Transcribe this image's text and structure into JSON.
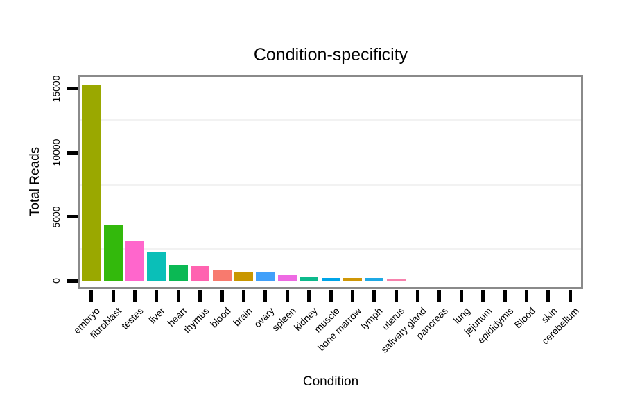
{
  "title": "Condition-specificity",
  "axes": {
    "x_title": "Condition",
    "y_title": "Total Reads",
    "y_tick_labels": [
      "0",
      "5000",
      "10000",
      "15000"
    ]
  },
  "chart_data": {
    "type": "bar",
    "title": "Condition-specificity",
    "xlabel": "Condition",
    "ylabel": "Total Reads",
    "categories": [
      "embryo",
      "fibroblast",
      "testes",
      "liver",
      "heart",
      "thymus",
      "blood",
      "brain",
      "ovary",
      "spleen",
      "kidney",
      "muscle",
      "bone marrow",
      "lymph",
      "uterus",
      "salivary gland",
      "pancreas",
      "lung",
      "jejunum",
      "epididymis",
      "Blood",
      "skin",
      "cerebellum"
    ],
    "values": [
      15300,
      4400,
      3060,
      2250,
      1260,
      1140,
      870,
      690,
      630,
      450,
      310,
      230,
      200,
      190,
      150,
      0,
      0,
      0,
      0,
      0,
      0,
      0,
      0
    ],
    "bar_colors": [
      "#9AA800",
      "#33B90C",
      "#FF66CC",
      "#0ABFB8",
      "#0BB954",
      "#FF63B0",
      "#F87A6E",
      "#C99700",
      "#41A0FA",
      "#EE6AE3",
      "#0DBA8C",
      "#00A5E8",
      "#CF9707",
      "#1FA9E4",
      "#F782AD",
      null,
      null,
      null,
      null,
      null,
      null,
      null,
      null
    ],
    "ylim": [
      0,
      16000
    ],
    "yticks": [
      0,
      5000,
      10000,
      15000
    ],
    "minor_gridlines": [
      2500,
      7500,
      12500
    ],
    "grid": "faint horizontal minor gridlines only",
    "legend_position": "none",
    "x_tick_label_rotation_deg": 45
  },
  "colors": {
    "background": "#FFFFFF",
    "panel_border": "#8A8A8A",
    "axis_tick": "#000000",
    "gridline": "#F2F2F2",
    "text": "#000000"
  }
}
